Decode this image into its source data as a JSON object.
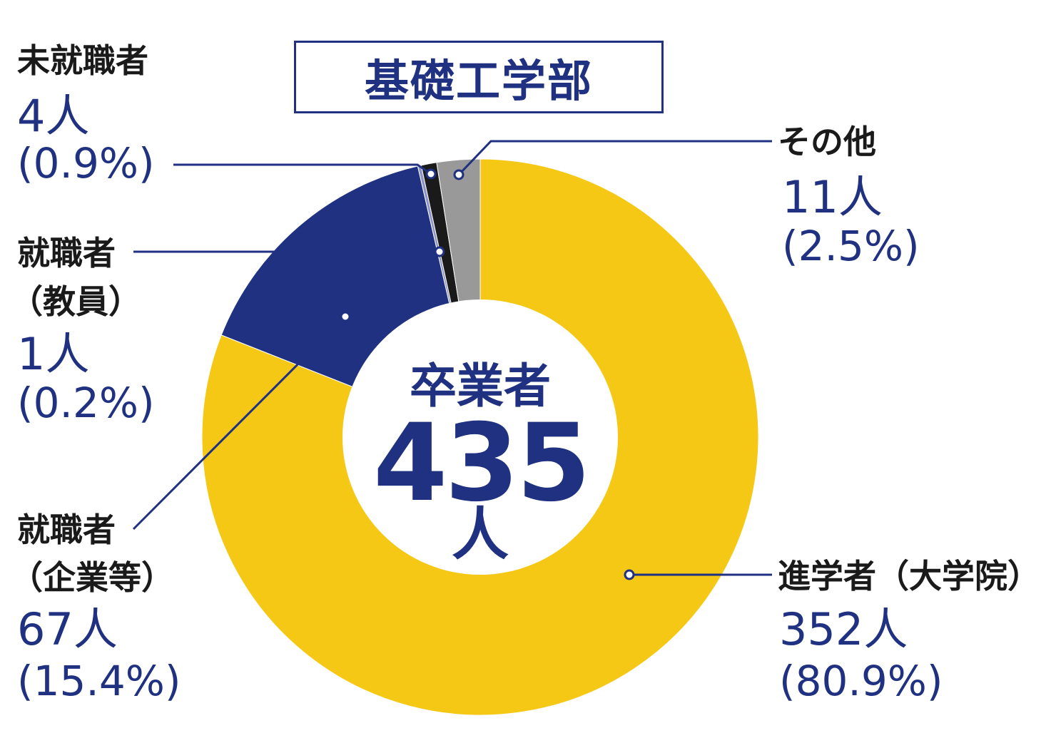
{
  "chart_data": {
    "type": "donut",
    "title": "基礎工学部",
    "center": {
      "label": "卒業者",
      "total": "435",
      "unit": "人"
    },
    "slices": [
      {
        "key": "grad",
        "category": "進学者（大学院）",
        "count": "352人",
        "percent": "(80.9%)",
        "value": 80.9,
        "color": "#f5c816"
      },
      {
        "key": "company",
        "category": "就職者",
        "category2": "（企業等）",
        "count": "67人",
        "percent": "(15.4%)",
        "value": 15.4,
        "color": "#1f3180"
      },
      {
        "key": "teacher",
        "category": "就職者",
        "category2": "（教員）",
        "count": "1人",
        "percent": "(0.2%)",
        "value": 0.2,
        "color": "#8d93c6"
      },
      {
        "key": "unemployed",
        "category": "未就職者",
        "count": "4人",
        "percent": "(0.9%)",
        "value": 0.9,
        "color": "#1a1a1a"
      },
      {
        "key": "other",
        "category": "その他",
        "count": "11人",
        "percent": "(2.5%)",
        "value": 2.5,
        "color": "#999999"
      }
    ]
  }
}
